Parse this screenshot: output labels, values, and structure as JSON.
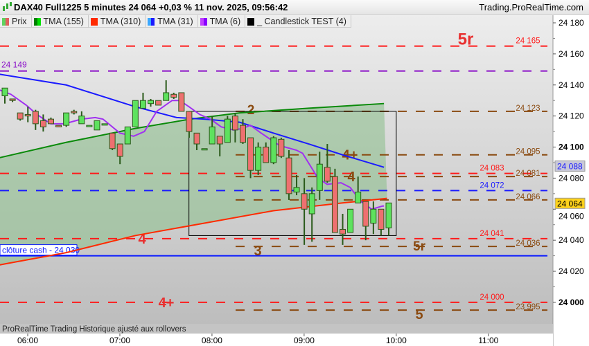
{
  "header": {
    "title": "DAX40 Full1225 5 minutes 24 064 +0,03 % 11 nov. 2025, 09:56:42",
    "site": "Trading.ProRealTime.com"
  },
  "legend": [
    {
      "label": "Prix",
      "colors": [
        "#5fd35f",
        "#e06060"
      ]
    },
    {
      "label": "TMA (155)",
      "colors": [
        "#008000",
        "#00e000"
      ]
    },
    {
      "label": "TMA (310)",
      "colors": [
        "#ff2a00",
        "#ff2a00"
      ]
    },
    {
      "label": "TMA (31)",
      "colors": [
        "#3aa8ff",
        "#1a1aff"
      ]
    },
    {
      "label": "TMA (6)",
      "colors": [
        "#c040ff",
        "#8a00ff"
      ]
    },
    {
      "label": "_ Candlestick TEST (4)",
      "colors": [
        "#000000",
        "#000000"
      ]
    }
  ],
  "footer": "ProRealTime Trading  Historique ajusté aux rollovers",
  "chart_data": {
    "type": "candlestick",
    "timeframe": "5 minutes",
    "first_candle": "05:45",
    "x_ticks": [
      "06:00",
      "07:00",
      "08:00",
      "09:00",
      "10:00",
      "11:00"
    ],
    "y_ticks": [
      24000,
      24020,
      24040,
      24060,
      24080,
      24100,
      24120,
      24140,
      24160,
      24180
    ],
    "y_tick_labels": [
      "24 000",
      "24 020",
      "24 040",
      "24 060",
      "24 080",
      "24 100",
      "24 120",
      "24 140",
      "24 160",
      "24 180"
    ],
    "ylim": [
      23985,
      24186
    ],
    "candles_ohlc": [
      [
        24133,
        24138,
        24128,
        24138
      ],
      [
        24131,
        24131,
        24129,
        24130
      ],
      [
        24122,
        24122,
        24117,
        24118
      ],
      [
        24121,
        24126,
        24116,
        24120
      ],
      [
        24123,
        24124,
        24111,
        24115
      ],
      [
        24117,
        24121,
        24110,
        24113
      ],
      [
        24118,
        24119,
        24115,
        24115
      ],
      [
        24114,
        24114,
        24113,
        24113
      ],
      [
        24114,
        24122,
        24113,
        24122
      ],
      [
        24123,
        24124,
        24121,
        24122
      ],
      [
        24115,
        24123,
        24115,
        24120
      ],
      [
        24114,
        24114,
        24114,
        24114
      ],
      [
        24111,
        24117,
        24111,
        24117
      ],
      [
        24115,
        24115,
        24115,
        24115
      ],
      [
        24109,
        24109,
        24098,
        24099
      ],
      [
        24102,
        24102,
        24089,
        24094
      ],
      [
        24102,
        24113,
        24102,
        24113
      ],
      [
        24113,
        24130,
        24113,
        24130
      ],
      [
        24125,
        24135,
        24125,
        24130
      ],
      [
        24128,
        24131,
        24126,
        24130
      ],
      [
        24130,
        24130,
        24127,
        24127
      ],
      [
        24130,
        24143,
        24130,
        24135
      ],
      [
        24134,
        24135,
        24131,
        24132
      ],
      [
        24135,
        24135,
        24123,
        24123
      ],
      [
        24123,
        24123,
        24106,
        24110
      ],
      [
        24109,
        24109,
        24098,
        24102
      ],
      [
        24099,
        24099,
        24099,
        24099
      ],
      [
        24102,
        24120,
        24102,
        24113
      ],
      [
        24107,
        24107,
        24094,
        24102
      ],
      [
        24103,
        24120,
        24103,
        24118
      ],
      [
        24120,
        24122,
        24103,
        24111
      ],
      [
        24114,
        24118,
        24102,
        24103
      ],
      [
        24106,
        24106,
        24080,
        24085
      ],
      [
        24085,
        24103,
        24082,
        24100
      ],
      [
        24100,
        24103,
        24090,
        24090
      ],
      [
        24090,
        24107,
        24089,
        24106
      ],
      [
        24105,
        24106,
        24093,
        24094
      ],
      [
        24093,
        24098,
        24066,
        24070
      ],
      [
        24071,
        24082,
        24069,
        24074
      ],
      [
        24070,
        24080,
        24037,
        24060
      ],
      [
        24057,
        24074,
        24039,
        24070
      ],
      [
        24072,
        24097,
        24066,
        24089
      ],
      [
        24087,
        24102,
        24077,
        24078
      ],
      [
        24081,
        24086,
        24045,
        24045
      ],
      [
        24047,
        24057,
        24037,
        24044
      ],
      [
        24045,
        24060,
        24045,
        24060
      ],
      [
        24064,
        24081,
        24064,
        24071
      ],
      [
        24065,
        24065,
        24040,
        24049
      ],
      [
        24051,
        24065,
        24044,
        24060
      ],
      [
        24060,
        24060,
        24043,
        24047
      ],
      [
        24048,
        24064,
        24043,
        24064
      ]
    ],
    "series": [
      {
        "name": "TMA (155)",
        "color": "#0a8a0a",
        "points": [
          [
            "05:41",
            24093
          ],
          [
            "06:25",
            24103
          ],
          [
            "07:10",
            24112
          ],
          [
            "07:46",
            24118
          ],
          [
            "08:18",
            24122
          ],
          [
            "09:03",
            24125
          ],
          [
            "09:52",
            24128
          ]
        ]
      },
      {
        "name": "TMA (310)",
        "color": "#ff2a00",
        "points": [
          [
            "05:41",
            24024
          ],
          [
            "06:25",
            24032
          ],
          [
            "07:10",
            24043
          ],
          [
            "07:55",
            24051
          ],
          [
            "08:40",
            24059
          ],
          [
            "09:25",
            24064
          ],
          [
            "09:54",
            24067
          ]
        ]
      },
      {
        "name": "TMA (31)",
        "color": "#1a1aff",
        "points": [
          [
            "05:41",
            24147
          ],
          [
            "06:25",
            24140
          ],
          [
            "07:10",
            24126
          ],
          [
            "07:37",
            24119
          ],
          [
            "07:55",
            24118
          ],
          [
            "08:18",
            24116
          ],
          [
            "08:40",
            24109
          ],
          [
            "09:03",
            24102
          ],
          [
            "09:25",
            24095
          ],
          [
            "09:52",
            24087
          ]
        ]
      },
      {
        "name": "TMA (6)",
        "color": "#a030f0",
        "points": [
          [
            "05:41",
            24137
          ],
          [
            "05:49",
            24134
          ],
          [
            "05:59",
            24127
          ],
          [
            "06:06",
            24121
          ],
          [
            "06:15",
            24115
          ],
          [
            "06:24",
            24115
          ],
          [
            "06:35",
            24118
          ],
          [
            "06:44",
            24119
          ],
          [
            "06:49",
            24118
          ],
          [
            "07:00",
            24109
          ],
          [
            "07:09",
            24107
          ],
          [
            "07:16",
            24110
          ],
          [
            "07:24",
            24123
          ],
          [
            "07:34",
            24130
          ],
          [
            "07:39",
            24130
          ],
          [
            "07:45",
            24126
          ],
          [
            "07:52",
            24121
          ],
          [
            "07:59",
            24118
          ],
          [
            "08:06",
            24113
          ],
          [
            "08:14",
            24111
          ],
          [
            "08:20",
            24112
          ],
          [
            "08:25",
            24114
          ],
          [
            "08:32",
            24109
          ],
          [
            "08:44",
            24101
          ],
          [
            "08:55",
            24098
          ],
          [
            "08:59",
            24096
          ],
          [
            "09:09",
            24080
          ],
          [
            "09:15",
            24076
          ],
          [
            "09:24",
            24077
          ],
          [
            "09:30",
            24074
          ],
          [
            "09:37",
            24065
          ],
          [
            "09:44",
            24060
          ],
          [
            "09:51",
            24062
          ],
          [
            "09:52",
            24062
          ]
        ]
      }
    ],
    "levels": [
      {
        "price": 24165,
        "label": "24 165",
        "color": "#ff1a1a",
        "style": "dash",
        "tag": "5r"
      },
      {
        "price": 24149,
        "label": "24 149",
        "color": "#8a10c8",
        "style": "dash"
      },
      {
        "price": 24123,
        "label": "24 123",
        "color": "#8a4a10",
        "style": "dash",
        "tag": "2"
      },
      {
        "price": 24095,
        "label": "24 095",
        "color": "#8a4a10",
        "style": "dash",
        "tag": "4+"
      },
      {
        "price": 24083,
        "label": "24 083",
        "color": "#ff1a1a",
        "style": "dash"
      },
      {
        "price": 24081,
        "label": "24 081",
        "color": "#8a4a10",
        "style": "dash",
        "tag": "4"
      },
      {
        "price": 24072,
        "label": "24 072",
        "color": "#1a1aff",
        "style": "dash"
      },
      {
        "price": 24066,
        "label": "24 066",
        "color": "#8a4a10",
        "style": "dash"
      },
      {
        "price": 24041,
        "label": "24 041",
        "color": "#ff1a1a",
        "style": "dash",
        "tag": "4"
      },
      {
        "price": 24036,
        "label": "24 036",
        "color": "#8a4a10",
        "style": "dash",
        "tag": "3",
        "tag2": "5r"
      },
      {
        "price": 24030,
        "label": "clôture cash -  24 030",
        "color": "#0a1aff",
        "style": "solid"
      },
      {
        "price": 24000,
        "label": "24 000",
        "color": "#ff1a1a",
        "style": "dash",
        "tag": "4+"
      },
      {
        "price": 23995,
        "label": "23 995",
        "color": "#8a4a10",
        "style": "dash",
        "tag": "5"
      }
    ],
    "box": {
      "from": "07:45",
      "to": "10:00",
      "top": 24123,
      "bottom": 24043
    },
    "price_tags": [
      {
        "price": 24088,
        "label": "24 088",
        "color": "#1a1aff",
        "bg": "#c8c8d8"
      },
      {
        "price": 24064,
        "label": "24 064",
        "color": "#000000",
        "bg": "#ffd21a"
      }
    ]
  }
}
